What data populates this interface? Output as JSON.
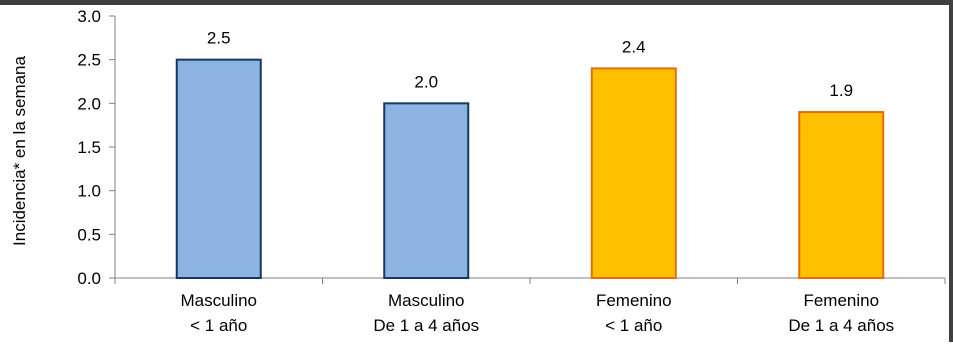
{
  "chart_data": {
    "type": "bar",
    "title": "",
    "xlabel": "",
    "ylabel": "Incidencia* en la semana",
    "ylim": [
      0,
      3.0
    ],
    "yticks": [
      "0.0",
      "0.5",
      "1.0",
      "1.5",
      "2.0",
      "2.5",
      "3.0"
    ],
    "categories": [
      [
        "Masculino",
        "< 1 año"
      ],
      [
        "Masculino",
        "De 1 a 4 años"
      ],
      [
        "Femenino",
        "< 1 año"
      ],
      [
        "Femenino",
        "De 1 a 4 años"
      ]
    ],
    "values": [
      2.5,
      2.0,
      2.4,
      1.9
    ],
    "data_labels": [
      "2.5",
      "2.0",
      "2.4",
      "1.9"
    ],
    "bar_colors": [
      "#8db3e2",
      "#8db3e2",
      "#ffc000",
      "#ffc000"
    ],
    "bar_border_colors": [
      "#17375e",
      "#17375e",
      "#e46c0a",
      "#e46c0a"
    ],
    "grid": false,
    "legend": "none"
  }
}
